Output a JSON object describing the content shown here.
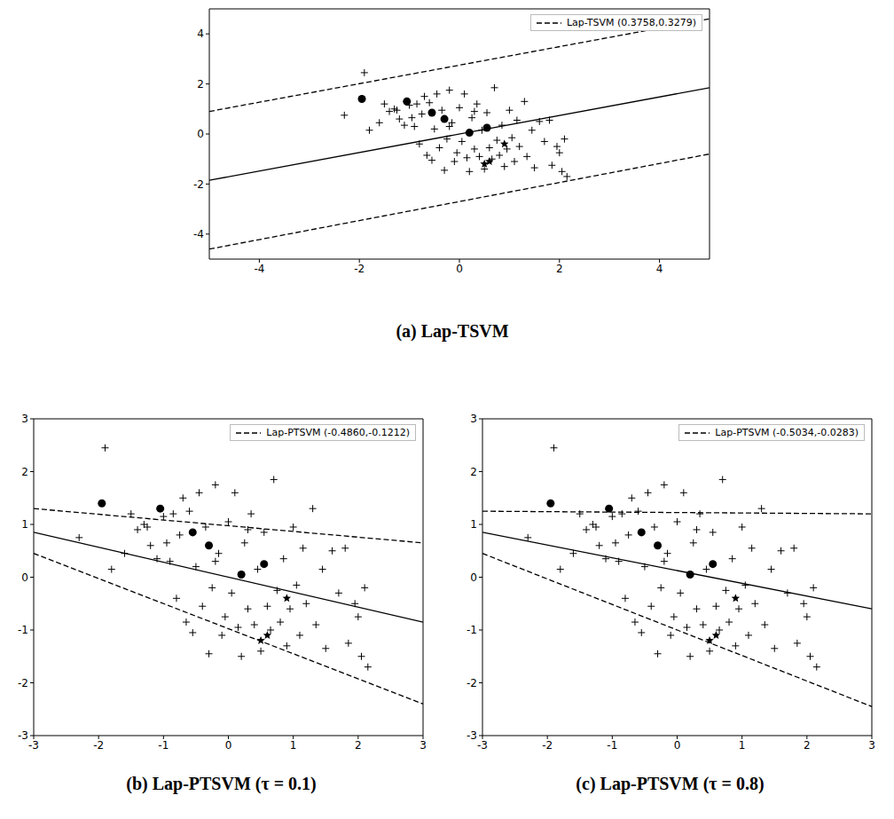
{
  "chart_data": [
    {
      "type": "scatter",
      "title": "(a) Lap-TSVM",
      "xlim": [
        -5,
        5
      ],
      "xticks": [
        -4,
        -2,
        0,
        2,
        4
      ],
      "ylim": [
        -5,
        5
      ],
      "yticks": [
        -4,
        -2,
        0,
        2,
        4
      ],
      "legend": "top-right",
      "series": [
        {
          "type": "scatter",
          "marker": "plus",
          "color": "#000000",
          "x": [
            -1.9,
            -2.3,
            -1.8,
            -1.5,
            -1.4,
            -1.3,
            -1.25,
            -1.2,
            -1.1,
            -1.0,
            -0.95,
            -0.9,
            -0.85,
            -0.8,
            -0.75,
            -0.7,
            -0.65,
            -0.6,
            -0.55,
            -0.5,
            -0.45,
            -0.4,
            -0.35,
            -0.3,
            -0.25,
            -0.2,
            -0.15,
            -0.1,
            -0.05,
            0.0,
            0.05,
            0.1,
            0.15,
            0.2,
            0.25,
            0.3,
            0.35,
            0.4,
            0.45,
            0.5,
            0.55,
            0.6,
            0.65,
            0.7,
            0.75,
            0.8,
            0.85,
            0.9,
            0.95,
            1.0,
            1.05,
            1.1,
            1.15,
            1.2,
            1.3,
            1.35,
            1.45,
            1.5,
            1.6,
            1.7,
            1.8,
            1.85,
            1.95,
            2.05,
            2.1,
            2.15,
            2.0,
            -1.6,
            -0.2,
            0.3
          ],
          "values": [
            2.45,
            0.75,
            0.15,
            1.2,
            0.9,
            1.0,
            0.95,
            0.6,
            0.35,
            1.15,
            0.65,
            0.3,
            1.2,
            -0.4,
            0.8,
            1.5,
            -0.85,
            1.25,
            -1.05,
            0.2,
            1.6,
            -0.55,
            0.95,
            -1.45,
            -0.2,
            1.75,
            0.45,
            -1.1,
            -0.75,
            1.05,
            -0.3,
            1.6,
            -0.95,
            -1.5,
            0.65,
            -0.6,
            1.2,
            -0.9,
            0.15,
            -1.4,
            0.85,
            -0.55,
            -1.0,
            1.85,
            -0.25,
            -0.85,
            0.35,
            -1.3,
            -0.6,
            0.95,
            -0.15,
            -1.1,
            0.55,
            -0.5,
            1.3,
            -0.9,
            0.15,
            -1.35,
            0.5,
            -0.3,
            0.55,
            -1.25,
            -0.5,
            -1.5,
            -0.2,
            -1.7,
            -0.75,
            0.45,
            0.3,
            0.9
          ]
        },
        {
          "type": "scatter",
          "marker": "circle",
          "color": "#000000",
          "x": [
            -1.95,
            -1.05,
            -0.55,
            -0.3,
            0.2,
            0.55
          ],
          "values": [
            1.4,
            1.3,
            0.85,
            0.6,
            0.05,
            0.25
          ]
        },
        {
          "type": "scatter",
          "marker": "star",
          "color": "#000000",
          "x": [
            0.9,
            0.5,
            0.6
          ],
          "values": [
            -0.4,
            -1.2,
            -1.1
          ]
        },
        {
          "type": "line",
          "line_style": "solid",
          "color": "#000000",
          "x": [
            -5,
            5
          ],
          "values": [
            -1.85,
            1.85
          ]
        },
        {
          "type": "line",
          "line_style": "dashed",
          "color": "#000000",
          "name": "Lap-TSVM (0.3758,0.3279)",
          "x": [
            -5,
            5
          ],
          "values": [
            0.9,
            4.6
          ]
        },
        {
          "type": "line",
          "line_style": "dashed",
          "color": "#000000",
          "x": [
            -5,
            5
          ],
          "values": [
            -4.6,
            -0.8
          ]
        }
      ]
    },
    {
      "type": "scatter",
      "title": "(b) Lap-PTSVM (τ = 0.1)",
      "xlim": [
        -3,
        3
      ],
      "xticks": [
        -3,
        -2,
        -1,
        0,
        1,
        2,
        3
      ],
      "ylim": [
        -3,
        3
      ],
      "yticks": [
        -3,
        -2,
        -1,
        0,
        1,
        2,
        3
      ],
      "legend": "top-right",
      "series": [
        {
          "type": "scatter",
          "marker": "plus",
          "color": "#000000",
          "x": [
            -1.9,
            -2.3,
            -1.8,
            -1.5,
            -1.4,
            -1.3,
            -1.25,
            -1.2,
            -1.1,
            -1.0,
            -0.95,
            -0.9,
            -0.85,
            -0.8,
            -0.75,
            -0.7,
            -0.65,
            -0.6,
            -0.55,
            -0.5,
            -0.45,
            -0.4,
            -0.35,
            -0.3,
            -0.25,
            -0.2,
            -0.15,
            -0.1,
            -0.05,
            0.0,
            0.05,
            0.1,
            0.15,
            0.2,
            0.25,
            0.3,
            0.35,
            0.4,
            0.45,
            0.5,
            0.55,
            0.6,
            0.65,
            0.7,
            0.75,
            0.8,
            0.85,
            0.9,
            0.95,
            1.0,
            1.05,
            1.1,
            1.15,
            1.2,
            1.3,
            1.35,
            1.45,
            1.5,
            1.6,
            1.7,
            1.8,
            1.85,
            1.95,
            2.05,
            2.1,
            2.15,
            2.0,
            -1.6,
            -0.2,
            0.3
          ],
          "values": [
            2.45,
            0.75,
            0.15,
            1.2,
            0.9,
            1.0,
            0.95,
            0.6,
            0.35,
            1.15,
            0.65,
            0.3,
            1.2,
            -0.4,
            0.8,
            1.5,
            -0.85,
            1.25,
            -1.05,
            0.2,
            1.6,
            -0.55,
            0.95,
            -1.45,
            -0.2,
            1.75,
            0.45,
            -1.1,
            -0.75,
            1.05,
            -0.3,
            1.6,
            -0.95,
            -1.5,
            0.65,
            -0.6,
            1.2,
            -0.9,
            0.15,
            -1.4,
            0.85,
            -0.55,
            -1.0,
            1.85,
            -0.25,
            -0.85,
            0.35,
            -1.3,
            -0.6,
            0.95,
            -0.15,
            -1.1,
            0.55,
            -0.5,
            1.3,
            -0.9,
            0.15,
            -1.35,
            0.5,
            -0.3,
            0.55,
            -1.25,
            -0.5,
            -1.5,
            -0.2,
            -1.7,
            -0.75,
            0.45,
            0.3,
            0.9
          ]
        },
        {
          "type": "scatter",
          "marker": "circle",
          "color": "#000000",
          "x": [
            -1.95,
            -1.05,
            -0.55,
            -0.3,
            0.2,
            0.55
          ],
          "values": [
            1.4,
            1.3,
            0.85,
            0.6,
            0.05,
            0.25
          ]
        },
        {
          "type": "scatter",
          "marker": "star",
          "color": "#000000",
          "x": [
            0.9,
            0.5,
            0.6
          ],
          "values": [
            -0.4,
            -1.2,
            -1.1
          ]
        },
        {
          "type": "line",
          "line_style": "solid",
          "color": "#000000",
          "x": [
            -3,
            3
          ],
          "values": [
            0.85,
            -0.85
          ]
        },
        {
          "type": "line",
          "line_style": "dashed",
          "color": "#000000",
          "name": "Lap-PTSVM (-0.4860,-0.1212)",
          "x": [
            -3,
            3
          ],
          "values": [
            1.3,
            0.65
          ]
        },
        {
          "type": "line",
          "line_style": "dashed",
          "color": "#000000",
          "x": [
            -3,
            3
          ],
          "values": [
            0.45,
            -2.4
          ]
        }
      ]
    },
    {
      "type": "scatter",
      "title": "(c) Lap-PTSVM (τ = 0.8)",
      "xlim": [
        -3,
        3
      ],
      "xticks": [
        -3,
        -2,
        -1,
        0,
        1,
        2,
        3
      ],
      "ylim": [
        -3,
        3
      ],
      "yticks": [
        -3,
        -2,
        -1,
        0,
        1,
        2,
        3
      ],
      "legend": "top-right",
      "series": [
        {
          "type": "scatter",
          "marker": "plus",
          "color": "#000000",
          "x": [
            -1.9,
            -2.3,
            -1.8,
            -1.5,
            -1.4,
            -1.3,
            -1.25,
            -1.2,
            -1.1,
            -1.0,
            -0.95,
            -0.9,
            -0.85,
            -0.8,
            -0.75,
            -0.7,
            -0.65,
            -0.6,
            -0.55,
            -0.5,
            -0.45,
            -0.4,
            -0.35,
            -0.3,
            -0.25,
            -0.2,
            -0.15,
            -0.1,
            -0.05,
            0.0,
            0.05,
            0.1,
            0.15,
            0.2,
            0.25,
            0.3,
            0.35,
            0.4,
            0.45,
            0.5,
            0.55,
            0.6,
            0.65,
            0.7,
            0.75,
            0.8,
            0.85,
            0.9,
            0.95,
            1.0,
            1.05,
            1.1,
            1.15,
            1.2,
            1.3,
            1.35,
            1.45,
            1.5,
            1.6,
            1.7,
            1.8,
            1.85,
            1.95,
            2.05,
            2.1,
            2.15,
            2.0,
            -1.6,
            -0.2,
            0.3
          ],
          "values": [
            2.45,
            0.75,
            0.15,
            1.2,
            0.9,
            1.0,
            0.95,
            0.6,
            0.35,
            1.15,
            0.65,
            0.3,
            1.2,
            -0.4,
            0.8,
            1.5,
            -0.85,
            1.25,
            -1.05,
            0.2,
            1.6,
            -0.55,
            0.95,
            -1.45,
            -0.2,
            1.75,
            0.45,
            -1.1,
            -0.75,
            1.05,
            -0.3,
            1.6,
            -0.95,
            -1.5,
            0.65,
            -0.6,
            1.2,
            -0.9,
            0.15,
            -1.4,
            0.85,
            -0.55,
            -1.0,
            1.85,
            -0.25,
            -0.85,
            0.35,
            -1.3,
            -0.6,
            0.95,
            -0.15,
            -1.1,
            0.55,
            -0.5,
            1.3,
            -0.9,
            0.15,
            -1.35,
            0.5,
            -0.3,
            0.55,
            -1.25,
            -0.5,
            -1.5,
            -0.2,
            -1.7,
            -0.75,
            0.45,
            0.3,
            0.9
          ]
        },
        {
          "type": "scatter",
          "marker": "circle",
          "color": "#000000",
          "x": [
            -1.95,
            -1.05,
            -0.55,
            -0.3,
            0.2,
            0.55
          ],
          "values": [
            1.4,
            1.3,
            0.85,
            0.6,
            0.05,
            0.25
          ]
        },
        {
          "type": "scatter",
          "marker": "star",
          "color": "#000000",
          "x": [
            0.9,
            0.5,
            0.6
          ],
          "values": [
            -0.4,
            -1.2,
            -1.1
          ]
        },
        {
          "type": "line",
          "line_style": "solid",
          "color": "#000000",
          "x": [
            -3,
            3
          ],
          "values": [
            0.85,
            -0.6
          ]
        },
        {
          "type": "line",
          "line_style": "dashed",
          "color": "#000000",
          "name": "Lap-PTSVM (-0.5034,-0.0283)",
          "x": [
            -3,
            3
          ],
          "values": [
            1.25,
            1.2
          ]
        },
        {
          "type": "line",
          "line_style": "dashed",
          "color": "#000000",
          "x": [
            -3,
            3
          ],
          "values": [
            0.45,
            -2.45
          ]
        }
      ]
    }
  ]
}
